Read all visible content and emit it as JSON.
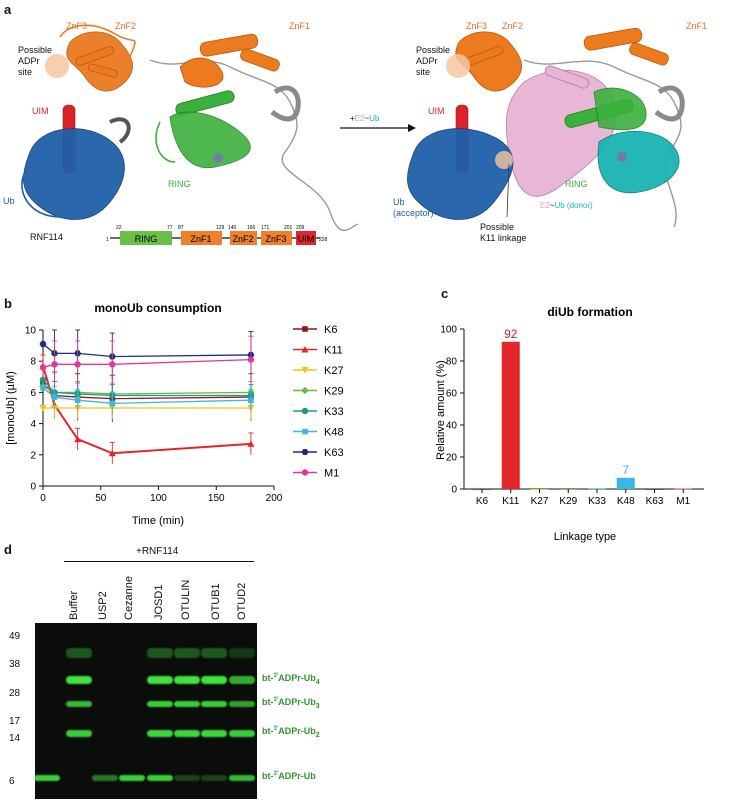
{
  "panel_a": {
    "letter": "a",
    "left_labels": {
      "znf3": "ZnF3",
      "znf2": "ZnF2",
      "znf1": "ZnF1",
      "adpr_line1": "Possible",
      "adpr_line2": "ADPr",
      "adpr_line3": "site",
      "uim": "UIM",
      "ring": "RING",
      "ub": "Ub"
    },
    "arrow_prefix": "+",
    "arrow_e2": "E2",
    "arrow_tilde": "~",
    "arrow_ub": "Ub",
    "right_labels": {
      "znf3": "ZnF3",
      "znf2": "ZnF2",
      "znf1": "ZnF1",
      "adpr_line1": "Possible",
      "adpr_line2": "ADPr",
      "adpr_line3": "site",
      "uim": "UIM",
      "ring": "RING",
      "ub_line1": "Ub",
      "ub_line2": "(acceptor)",
      "k11_line1": "Possible",
      "k11_line2": "K11 linkage",
      "e2": "E2",
      "tilde": "~",
      "ub_donor": "Ub (donor)"
    },
    "domain_map": {
      "protein": "RNF114",
      "start": "1",
      "end": "228",
      "domains": [
        {
          "name": "RING",
          "from": "22",
          "to": "77",
          "color": "#6abf45"
        },
        {
          "name": "ZnF1",
          "from": "87",
          "to": "129",
          "color": "#f07f2a"
        },
        {
          "name": "ZnF2",
          "from": "140",
          "to": "166",
          "color": "#f07f2a"
        },
        {
          "name": "ZnF3",
          "from": "171",
          "to": "201",
          "color": "#f07f2a"
        },
        {
          "name": "UIM",
          "from": "209",
          "to": "",
          "color": "#e0262b"
        }
      ]
    }
  },
  "panel_b": {
    "letter": "b",
    "chart_data": {
      "type": "line",
      "title": "monoUb consumption",
      "xlabel": "Time (min)",
      "ylabel": "[monoUb] (µM)",
      "xlim": [
        0,
        200
      ],
      "ylim": [
        0,
        10
      ],
      "xticks": [
        "0",
        "50",
        "100",
        "150",
        "200"
      ],
      "yticks": [
        "0",
        "2",
        "4",
        "6",
        "8",
        "10"
      ],
      "x": [
        0,
        10,
        30,
        60,
        180
      ],
      "series": [
        {
          "name": "K6",
          "color": "#8b1a1a",
          "marker": "square",
          "values": [
            6.6,
            5.8,
            5.7,
            5.6,
            5.7
          ]
        },
        {
          "name": "K11",
          "color": "#e3262a",
          "marker": "triangle",
          "values": [
            7.7,
            5.2,
            3.0,
            2.1,
            2.7
          ]
        },
        {
          "name": "K27",
          "color": "#f4c11a",
          "marker": "tri-down",
          "values": [
            5.0,
            5.0,
            5.0,
            5.0,
            5.0
          ]
        },
        {
          "name": "K29",
          "color": "#68b845",
          "marker": "diamond",
          "values": [
            6.4,
            6.0,
            6.0,
            5.9,
            6.0
          ]
        },
        {
          "name": "K33",
          "color": "#1a9a8a",
          "marker": "circle",
          "values": [
            6.8,
            6.0,
            5.9,
            5.8,
            5.8
          ]
        },
        {
          "name": "K48",
          "color": "#3ab6e7",
          "marker": "square",
          "values": [
            6.3,
            5.7,
            5.5,
            5.3,
            5.5
          ]
        },
        {
          "name": "K63",
          "color": "#1f2f7a",
          "marker": "hexagon",
          "values": [
            9.1,
            8.5,
            8.5,
            8.3,
            8.4
          ]
        },
        {
          "name": "M1",
          "color": "#e0389a",
          "marker": "circle",
          "values": [
            7.6,
            7.8,
            7.8,
            7.8,
            8.1
          ]
        }
      ],
      "legend": "right"
    }
  },
  "panel_c": {
    "letter": "c",
    "chart_data": {
      "type": "bar",
      "title": "diUb formation",
      "xlabel": "Linkage type",
      "ylabel": "Relative amount (%)",
      "ylim": [
        0,
        100
      ],
      "yticks": [
        "0",
        "20",
        "40",
        "60",
        "80",
        "100"
      ],
      "categories": [
        "K6",
        "K11",
        "K27",
        "K29",
        "K33",
        "K48",
        "K63",
        "M1"
      ],
      "values": [
        0,
        92,
        0,
        0,
        0.3,
        7,
        0,
        0.3
      ],
      "colors": [
        "#8b1a1a",
        "#e3262a",
        "#f4c11a",
        "#68b845",
        "#1a9a8a",
        "#3ab6e7",
        "#1f2f7a",
        "#e0389a"
      ],
      "data_labels": [
        {
          "index": 1,
          "text": "92",
          "color": "#d1202a"
        },
        {
          "index": 5,
          "text": "7",
          "color": "#3ab6e7"
        }
      ]
    }
  },
  "panel_d": {
    "letter": "d",
    "header": "+RNF114",
    "lanes": [
      "Buffer",
      "USP2",
      "Cezanne",
      "JOSD1",
      "OTULIN",
      "OTUB1",
      "OTUD2"
    ],
    "mw_markers": [
      "49",
      "38",
      "28",
      "17",
      "14",
      "6"
    ],
    "band_labels": [
      {
        "pre": "bt-",
        "sup": "3'",
        "main": "ADPr-Ub",
        "sub": "4"
      },
      {
        "pre": "bt-",
        "sup": "3'",
        "main": "ADPr-Ub",
        "sub": "3"
      },
      {
        "pre": "bt-",
        "sup": "3'",
        "main": "ADPr-Ub",
        "sub": "2"
      },
      {
        "pre": "bt-",
        "sup": "3'",
        "main": "ADPr-Ub",
        "sub": ""
      }
    ],
    "label_color": "#2e9a2e"
  }
}
